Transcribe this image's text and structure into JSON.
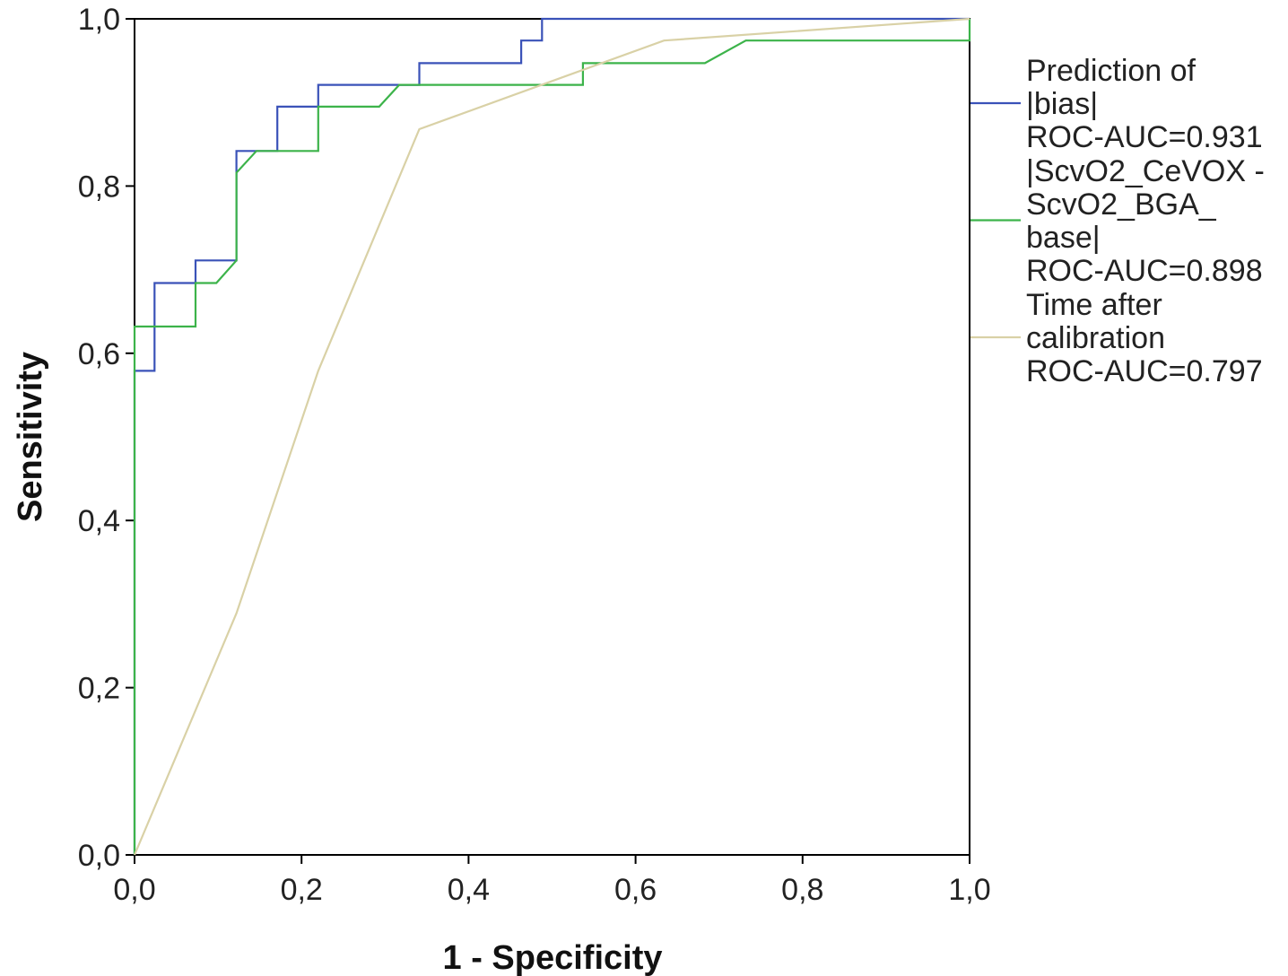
{
  "chart_data": {
    "type": "line",
    "title": "",
    "xlabel": "1 - Specificity",
    "ylabel": "Sensitivity",
    "xlim": [
      0,
      1
    ],
    "ylim": [
      0,
      1
    ],
    "x_ticks": [
      "0,0",
      "0,2",
      "0,4",
      "0,6",
      "0,8",
      "1,0"
    ],
    "y_ticks": [
      "0,0",
      "0,2",
      "0,4",
      "0,6",
      "0,8",
      "1,0"
    ],
    "grid": false,
    "legend_position": "right",
    "series": [
      {
        "name": "Prediction of |bias| ROC-AUC=0.931",
        "label_lines": [
          "Prediction of",
          "|bias|",
          "ROC-AUC=0.931"
        ],
        "color": "#3a52b8",
        "points": [
          [
            0,
            0
          ],
          [
            0,
            0.579
          ],
          [
            0.024,
            0.579
          ],
          [
            0.024,
            0.684
          ],
          [
            0.073,
            0.684
          ],
          [
            0.073,
            0.711
          ],
          [
            0.122,
            0.711
          ],
          [
            0.122,
            0.842
          ],
          [
            0.171,
            0.842
          ],
          [
            0.171,
            0.895
          ],
          [
            0.22,
            0.895
          ],
          [
            0.22,
            0.921
          ],
          [
            0.341,
            0.921
          ],
          [
            0.341,
            0.947
          ],
          [
            0.463,
            0.947
          ],
          [
            0.463,
            0.974
          ],
          [
            0.488,
            0.974
          ],
          [
            0.488,
            1.0
          ],
          [
            1.0,
            1.0
          ]
        ]
      },
      {
        "name": "|ScvO2_CeVOX - ScvO2_BGA_ base| ROC-AUC=0.898",
        "label_lines": [
          "|ScvO2_CeVOX -",
          "ScvO2_BGA_",
          "base|",
          "ROC-AUC=0.898"
        ],
        "color": "#3cb34a",
        "points": [
          [
            0,
            0
          ],
          [
            0,
            0.632
          ],
          [
            0.073,
            0.632
          ],
          [
            0.073,
            0.684
          ],
          [
            0.098,
            0.684
          ],
          [
            0.122,
            0.711
          ],
          [
            0.122,
            0.816
          ],
          [
            0.146,
            0.842
          ],
          [
            0.22,
            0.842
          ],
          [
            0.22,
            0.895
          ],
          [
            0.293,
            0.895
          ],
          [
            0.317,
            0.921
          ],
          [
            0.537,
            0.921
          ],
          [
            0.537,
            0.947
          ],
          [
            0.683,
            0.947
          ],
          [
            0.732,
            0.974
          ],
          [
            1.0,
            0.974
          ],
          [
            1.0,
            1.0
          ]
        ]
      },
      {
        "name": "Time after calibration ROC-AUC=0.797",
        "label_lines": [
          "Time after",
          "calibration",
          "ROC-AUC=0.797"
        ],
        "color": "#d9d1a6",
        "points": [
          [
            0,
            0
          ],
          [
            0.122,
            0.289
          ],
          [
            0.22,
            0.579
          ],
          [
            0.341,
            0.868
          ],
          [
            0.634,
            0.974
          ],
          [
            1.0,
            1.0
          ]
        ]
      }
    ]
  }
}
